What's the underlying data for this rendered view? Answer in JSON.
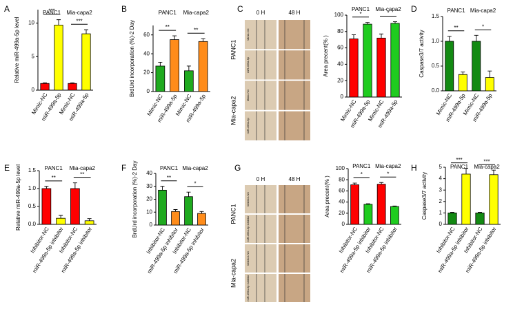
{
  "chart_data": [
    {
      "type": "bar",
      "panel": "A",
      "ylabel": "Relative miR-499a-5p level",
      "groups": [
        "PANC1",
        "Mia-capa2"
      ],
      "categories": [
        "Mimic-NC",
        "miR-499a-5p",
        "Mimic-NC",
        "miR-499a-5p"
      ],
      "values": [
        1,
        9.7,
        1,
        8.4
      ],
      "errors": [
        0.1,
        0.8,
        0.1,
        0.6
      ],
      "colors": [
        "#ff0000",
        "#ffff00",
        "#ff0000",
        "#ffff00"
      ],
      "ylim": [
        0,
        12
      ],
      "yticks": [
        0,
        5,
        10
      ],
      "significance": [
        "***",
        "***"
      ]
    },
    {
      "type": "bar",
      "panel": "B",
      "ylabel": "BrdUrd incorporation (%)-2 Day",
      "groups": [
        "PANC1",
        "Mia-capa2"
      ],
      "categories": [
        "Mimic-NC",
        "miR-499a-5p",
        "Mimic-NC",
        "miR-499a-5p"
      ],
      "values": [
        27,
        55,
        22,
        53
      ],
      "errors": [
        4,
        4,
        5,
        3
      ],
      "colors": [
        "#1faa1f",
        "#ff8c1a",
        "#1faa1f",
        "#ff8c1a"
      ],
      "ylim": [
        0,
        70
      ],
      "yticks": [
        0,
        20,
        40,
        60
      ],
      "significance": [
        "**",
        "**"
      ]
    },
    {
      "type": "bar",
      "panel": "C",
      "ylabel": "Area precent(% )",
      "groups": [
        "PANC1",
        "Mia-capa2"
      ],
      "categories": [
        "Mimic-NC",
        "miR-499a-5p",
        "Mimic-NC",
        "miR-499a-5p"
      ],
      "values": [
        71,
        89,
        72,
        90
      ],
      "errors": [
        5,
        2,
        5,
        2
      ],
      "colors": [
        "#ff0000",
        "#1fcc1f",
        "#ff0000",
        "#1fcc1f"
      ],
      "ylim": [
        0,
        100
      ],
      "yticks": [
        0,
        20,
        40,
        60,
        80,
        100
      ],
      "significance": [
        "*",
        "*"
      ]
    },
    {
      "type": "bar",
      "panel": "D",
      "ylabel": "Caspase3/7 activity",
      "groups": [
        "PANC1",
        "Mia-capa2"
      ],
      "categories": [
        "Mimic-NC",
        "miR-499a-5p",
        "Mimic-NC",
        "miR-499a-5p"
      ],
      "values": [
        1.0,
        0.33,
        1.0,
        0.27
      ],
      "errors": [
        0.1,
        0.05,
        0.12,
        0.13
      ],
      "colors": [
        "#138a13",
        "#ffff00",
        "#138a13",
        "#ffff00"
      ],
      "ylim": [
        0,
        1.5
      ],
      "yticks": [
        {
          "value": 0,
          "label": "0.0"
        },
        0.5,
        {
          "value": 1,
          "label": "1.0"
        },
        1.5
      ],
      "significance": [
        "**",
        "*"
      ]
    },
    {
      "type": "bar",
      "panel": "E",
      "ylabel": "Relative miR-499a-5p level",
      "groups": [
        "PANC1",
        "Mia-capa2"
      ],
      "categories": [
        "Inhibitor-NC",
        "miR-499a-5p inhibitor",
        "Inhibitor-NC",
        "miR-499a-5p inhibitor"
      ],
      "values": [
        1.0,
        0.17,
        1.0,
        0.1
      ],
      "errors": [
        0.06,
        0.08,
        0.16,
        0.06
      ],
      "colors": [
        "#ff0000",
        "#ffff00",
        "#ff0000",
        "#ffff00"
      ],
      "ylim": [
        0,
        1.5
      ],
      "yticks": [
        {
          "value": 0,
          "label": "0.0"
        },
        0.5,
        {
          "value": 1,
          "label": "1.0"
        },
        1.5
      ],
      "significance": [
        "**",
        "**"
      ]
    },
    {
      "type": "bar",
      "panel": "F",
      "ylabel": "BrdUrd incorporation (%)-2 Day",
      "groups": [
        "PANC1",
        "Mia-capa2"
      ],
      "categories": [
        "Inhibitor-NC",
        "miR-499a-5p inhibitor",
        "Inhibitor-NC",
        "miR-499a-5p inhibitor"
      ],
      "values": [
        27,
        10.5,
        22,
        9
      ],
      "errors": [
        3,
        1.5,
        3.5,
        1.5
      ],
      "colors": [
        "#1faa1f",
        "#ff8c1a",
        "#1faa1f",
        "#ff8c1a"
      ],
      "ylim": [
        0,
        40
      ],
      "yticks": [
        0,
        10,
        20,
        30,
        40
      ],
      "significance": [
        "**",
        "*"
      ]
    },
    {
      "type": "bar",
      "panel": "G",
      "ylabel": "Area precent(% )",
      "groups": [
        "PANC1",
        "Mia-capa2"
      ],
      "categories": [
        "Inhibitor-NC",
        "miR-499a-5p inhibitor",
        "Inhibitor-NC",
        "miR-499a-5p inhibitor"
      ],
      "values": [
        71,
        36,
        72,
        32
      ],
      "errors": [
        3,
        1,
        3,
        1
      ],
      "colors": [
        "#ff0000",
        "#1fcc1f",
        "#ff0000",
        "#1fcc1f"
      ],
      "ylim": [
        0,
        100
      ],
      "yticks": [
        0,
        20,
        40,
        60,
        80,
        100
      ],
      "significance": [
        "*",
        "*"
      ]
    },
    {
      "type": "bar",
      "panel": "H",
      "ylabel": "Caspase3/7 activity",
      "groups": [
        "PANC1",
        "Mia-capa2"
      ],
      "categories": [
        "Inhibitor-NC",
        "miR-499a-5p inhibitor",
        "Inhibitor-NC",
        "miR-499a-5p inhibitor"
      ],
      "values": [
        1.0,
        4.4,
        1.0,
        4.35
      ],
      "errors": [
        0.05,
        0.5,
        0.05,
        0.4
      ],
      "colors": [
        "#138a13",
        "#ffff00",
        "#138a13",
        "#ffff00"
      ],
      "ylim": [
        0,
        5
      ],
      "yticks": [
        0,
        1,
        2,
        3,
        4,
        5
      ],
      "significance": [
        "***",
        "***"
      ]
    }
  ],
  "micrographs": [
    {
      "columns": [
        "0 H",
        "48 H"
      ],
      "groups": [
        "PANC1",
        "Mia-capa2"
      ],
      "rows": [
        "Mimic-NC",
        "miR-499a-5p",
        "Mimic-NC",
        "miR-499a-5p"
      ]
    },
    {
      "columns": [
        "0 H",
        "48 H"
      ],
      "groups": [
        "PANC1",
        "Mia-capa2"
      ],
      "rows": [
        "Inhibitor-NC",
        "miR-499a-5p inhibitor",
        "Inhibitor-NC",
        "miR-499a-5p inhibitor"
      ]
    }
  ]
}
